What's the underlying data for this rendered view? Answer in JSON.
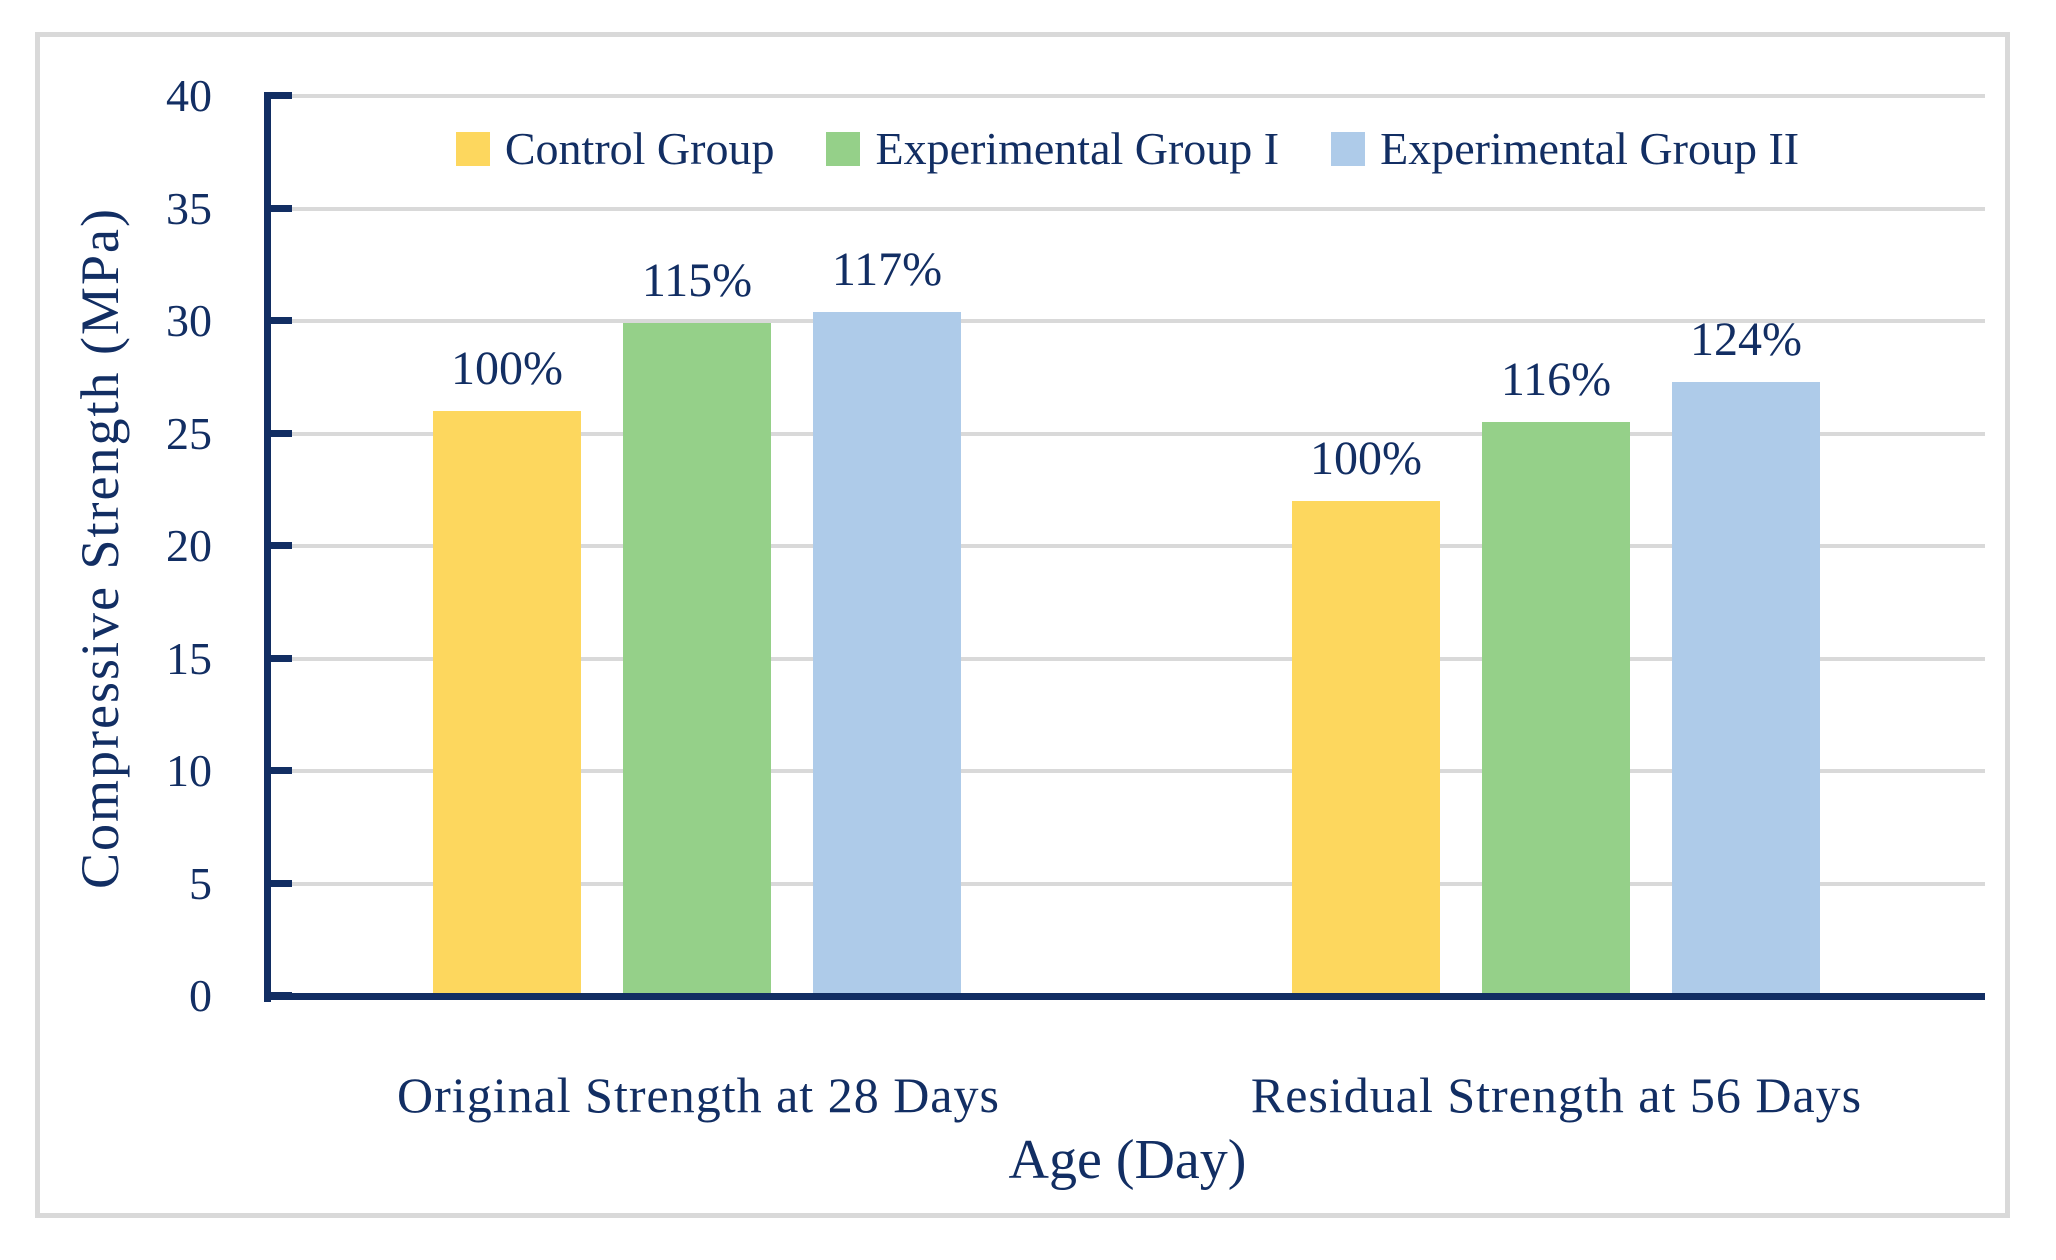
{
  "chart_data": {
    "type": "bar",
    "title": "",
    "xlabel": "Age (Day)",
    "ylabel": "Compressive Strength (MPa)",
    "categories": [
      "Original Strength at 28 Days",
      "Residual Strength at 56 Days"
    ],
    "series": [
      {
        "name": "Control Group",
        "color": "#FDD75E",
        "values": [
          26.0,
          22.0
        ],
        "labels": [
          "100%",
          "100%"
        ]
      },
      {
        "name": "Experimental Group I",
        "color": "#95D089",
        "values": [
          29.9,
          25.5
        ],
        "labels": [
          "115%",
          "116%"
        ]
      },
      {
        "name": "Experimental Group II",
        "color": "#AECBE9",
        "values": [
          30.4,
          27.3
        ],
        "labels": [
          "117%",
          "124%"
        ]
      }
    ],
    "ylim": [
      0,
      40
    ],
    "yticks": [
      0,
      5,
      10,
      15,
      20,
      25,
      30,
      35,
      40
    ],
    "grid": "horizontal",
    "legend_position": "top"
  },
  "colors": {
    "text_and_axis": "#122E63",
    "gridline": "#D9D9D9",
    "frame_border": "#D9D9D9",
    "background": "#FFFFFF"
  }
}
